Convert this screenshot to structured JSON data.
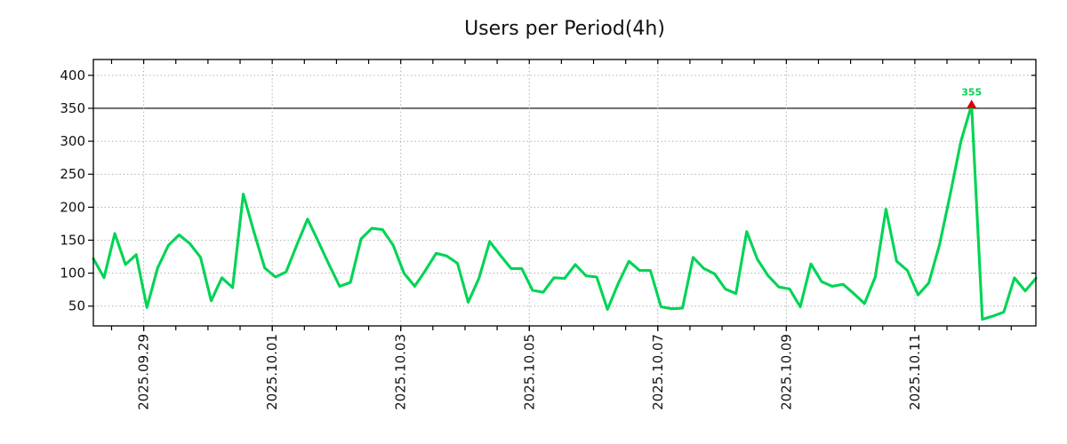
{
  "title": "Users per Period(4h)",
  "chart_data": {
    "type": "line",
    "title": "Users per Period(4h)",
    "xlabel": "",
    "ylabel": "",
    "legend": "none",
    "grid": "dotted",
    "line_color": "#00d455",
    "grid_color": "#b0b0b0",
    "axis_color": "#000000",
    "ylim": [
      20,
      424
    ],
    "y_ticks": [
      50,
      100,
      150,
      200,
      250,
      300,
      350,
      400
    ],
    "threshold_value": 350,
    "x_tick_labels": [
      "2025.09.29",
      "2025.10.01",
      "2025.10.03",
      "2025.10.05",
      "2025.10.07",
      "2025.10.09",
      "2025.10.11"
    ],
    "x_major_tick_indices": [
      4.7,
      16.7,
      28.7,
      40.7,
      52.7,
      64.7,
      76.7
    ],
    "x_minor_tick_start": 1.7,
    "x_minor_tick_step": 3,
    "period_hours": 4,
    "peak": {
      "index": 82,
      "value": 355,
      "label": "355",
      "marker": "triangle-up",
      "marker_color": "#e00000",
      "label_color": "#00d455"
    },
    "values": [
      122,
      93,
      160,
      113,
      128,
      48,
      108,
      142,
      158,
      145,
      124,
      58,
      93,
      78,
      220,
      162,
      108,
      94,
      102,
      143,
      182,
      148,
      113,
      80,
      86,
      152,
      168,
      166,
      142,
      100,
      80,
      104,
      130,
      126,
      115,
      56,
      92,
      148,
      127,
      107,
      107,
      74,
      71,
      93,
      92,
      113,
      96,
      94,
      45,
      84,
      118,
      104,
      104,
      49,
      46,
      47,
      124,
      107,
      99,
      76,
      69,
      163,
      121,
      96,
      79,
      76,
      49,
      114,
      87,
      80,
      83,
      69,
      54,
      94,
      197,
      118,
      104,
      67,
      85,
      143,
      219,
      300,
      355,
      30,
      35,
      41,
      93,
      73,
      92
    ]
  }
}
